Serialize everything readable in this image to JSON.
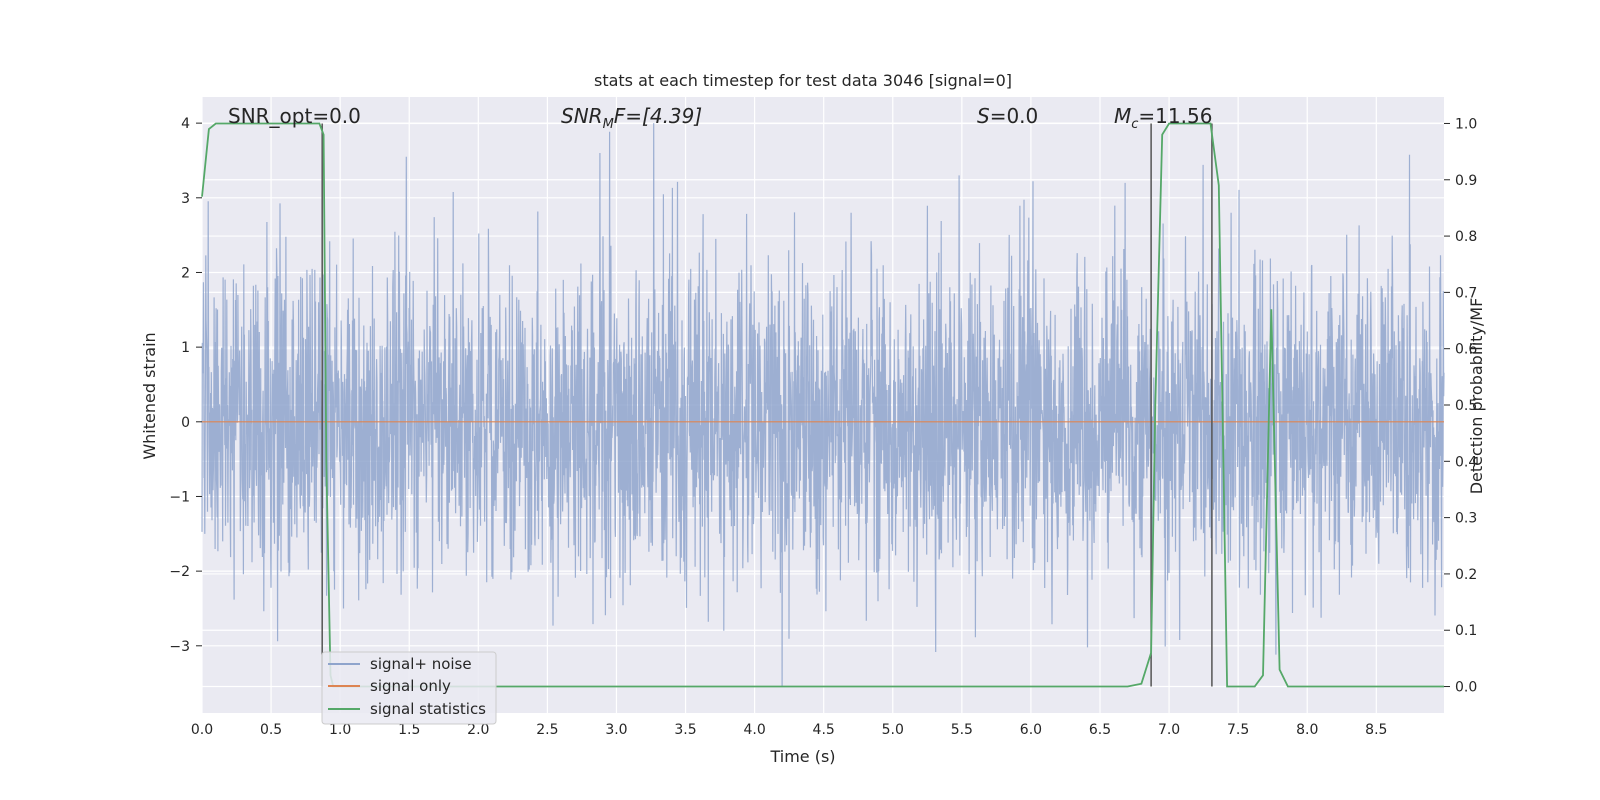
{
  "chart_data": {
    "type": "line",
    "title": "stats at each timestep for test data 3046 [signal=0]",
    "xlabel": "Time (s)",
    "ylabel": "Whitened strain",
    "y2label": "Detection probability/MF",
    "xlim": [
      0.0,
      8.99
    ],
    "ylim": [
      -3.9,
      4.35
    ],
    "y2lim": [
      -0.047,
      1.047
    ],
    "grid": true,
    "x_ticks": [
      "0.0",
      "0.5",
      "1.0",
      "1.5",
      "2.0",
      "2.5",
      "3.0",
      "3.5",
      "4.0",
      "4.5",
      "5.0",
      "5.5",
      "6.0",
      "6.5",
      "7.0",
      "7.5",
      "8.0",
      "8.5"
    ],
    "y_ticks": [
      "−3",
      "−2",
      "−1",
      "0",
      "1",
      "2",
      "3",
      "4"
    ],
    "y2_ticks": [
      "0.0",
      "0.1",
      "0.2",
      "0.3",
      "0.4",
      "0.5",
      "0.6",
      "0.7",
      "0.8",
      "0.9",
      "1.0"
    ],
    "annotations": {
      "snr_opt": "SNR_opt=0.0",
      "snr_mf_a": "SNR",
      "snr_mf_b": "M",
      "snr_mf_c": "F=[4.39]",
      "s_a": "S",
      "s_b": "=0.0",
      "mc_a": "M",
      "mc_b": "c",
      "mc_c": "=11.56"
    },
    "legend": {
      "placement": "lower-left",
      "entries": [
        "signal+ noise",
        "signal only",
        "signal statistics"
      ]
    },
    "colors": {
      "noise": "#8fa4cc",
      "signal": "#dd8452",
      "stats": "#55a868",
      "vline": "#555555",
      "background": "#eaeaf2",
      "grid": "#ffffff"
    },
    "series": [
      {
        "name": "signal+ noise",
        "description_range": [
          -3.55,
          4.0
        ],
        "peaks": [
          [
            3.27,
            4.0
          ],
          [
            1.48,
            3.55
          ],
          [
            2.88,
            3.6
          ],
          [
            5.48,
            3.3
          ],
          [
            4.2,
            -3.55
          ]
        ]
      },
      {
        "name": "signal only",
        "x": [
          0.0,
          8.99
        ],
        "y": [
          0.0,
          0.0
        ]
      },
      {
        "name": "signal statistics",
        "axis": "right",
        "x": [
          0.0,
          0.05,
          0.1,
          0.15,
          0.85,
          0.88,
          0.9,
          0.93,
          0.95,
          6.7,
          6.8,
          6.87,
          6.9,
          6.95,
          7.0,
          7.3,
          7.36,
          7.42,
          7.62,
          7.68,
          7.74,
          7.8,
          7.86,
          8.99
        ],
        "y": [
          0.87,
          0.99,
          1.0,
          1.0,
          1.0,
          0.98,
          0.4,
          0.02,
          0.0,
          0.0,
          0.005,
          0.06,
          0.5,
          0.98,
          1.0,
          1.0,
          0.89,
          0.0,
          0.0,
          0.02,
          0.67,
          0.03,
          0.0,
          0.0
        ]
      }
    ],
    "vlines": [
      0.87,
      6.87,
      7.31
    ]
  }
}
